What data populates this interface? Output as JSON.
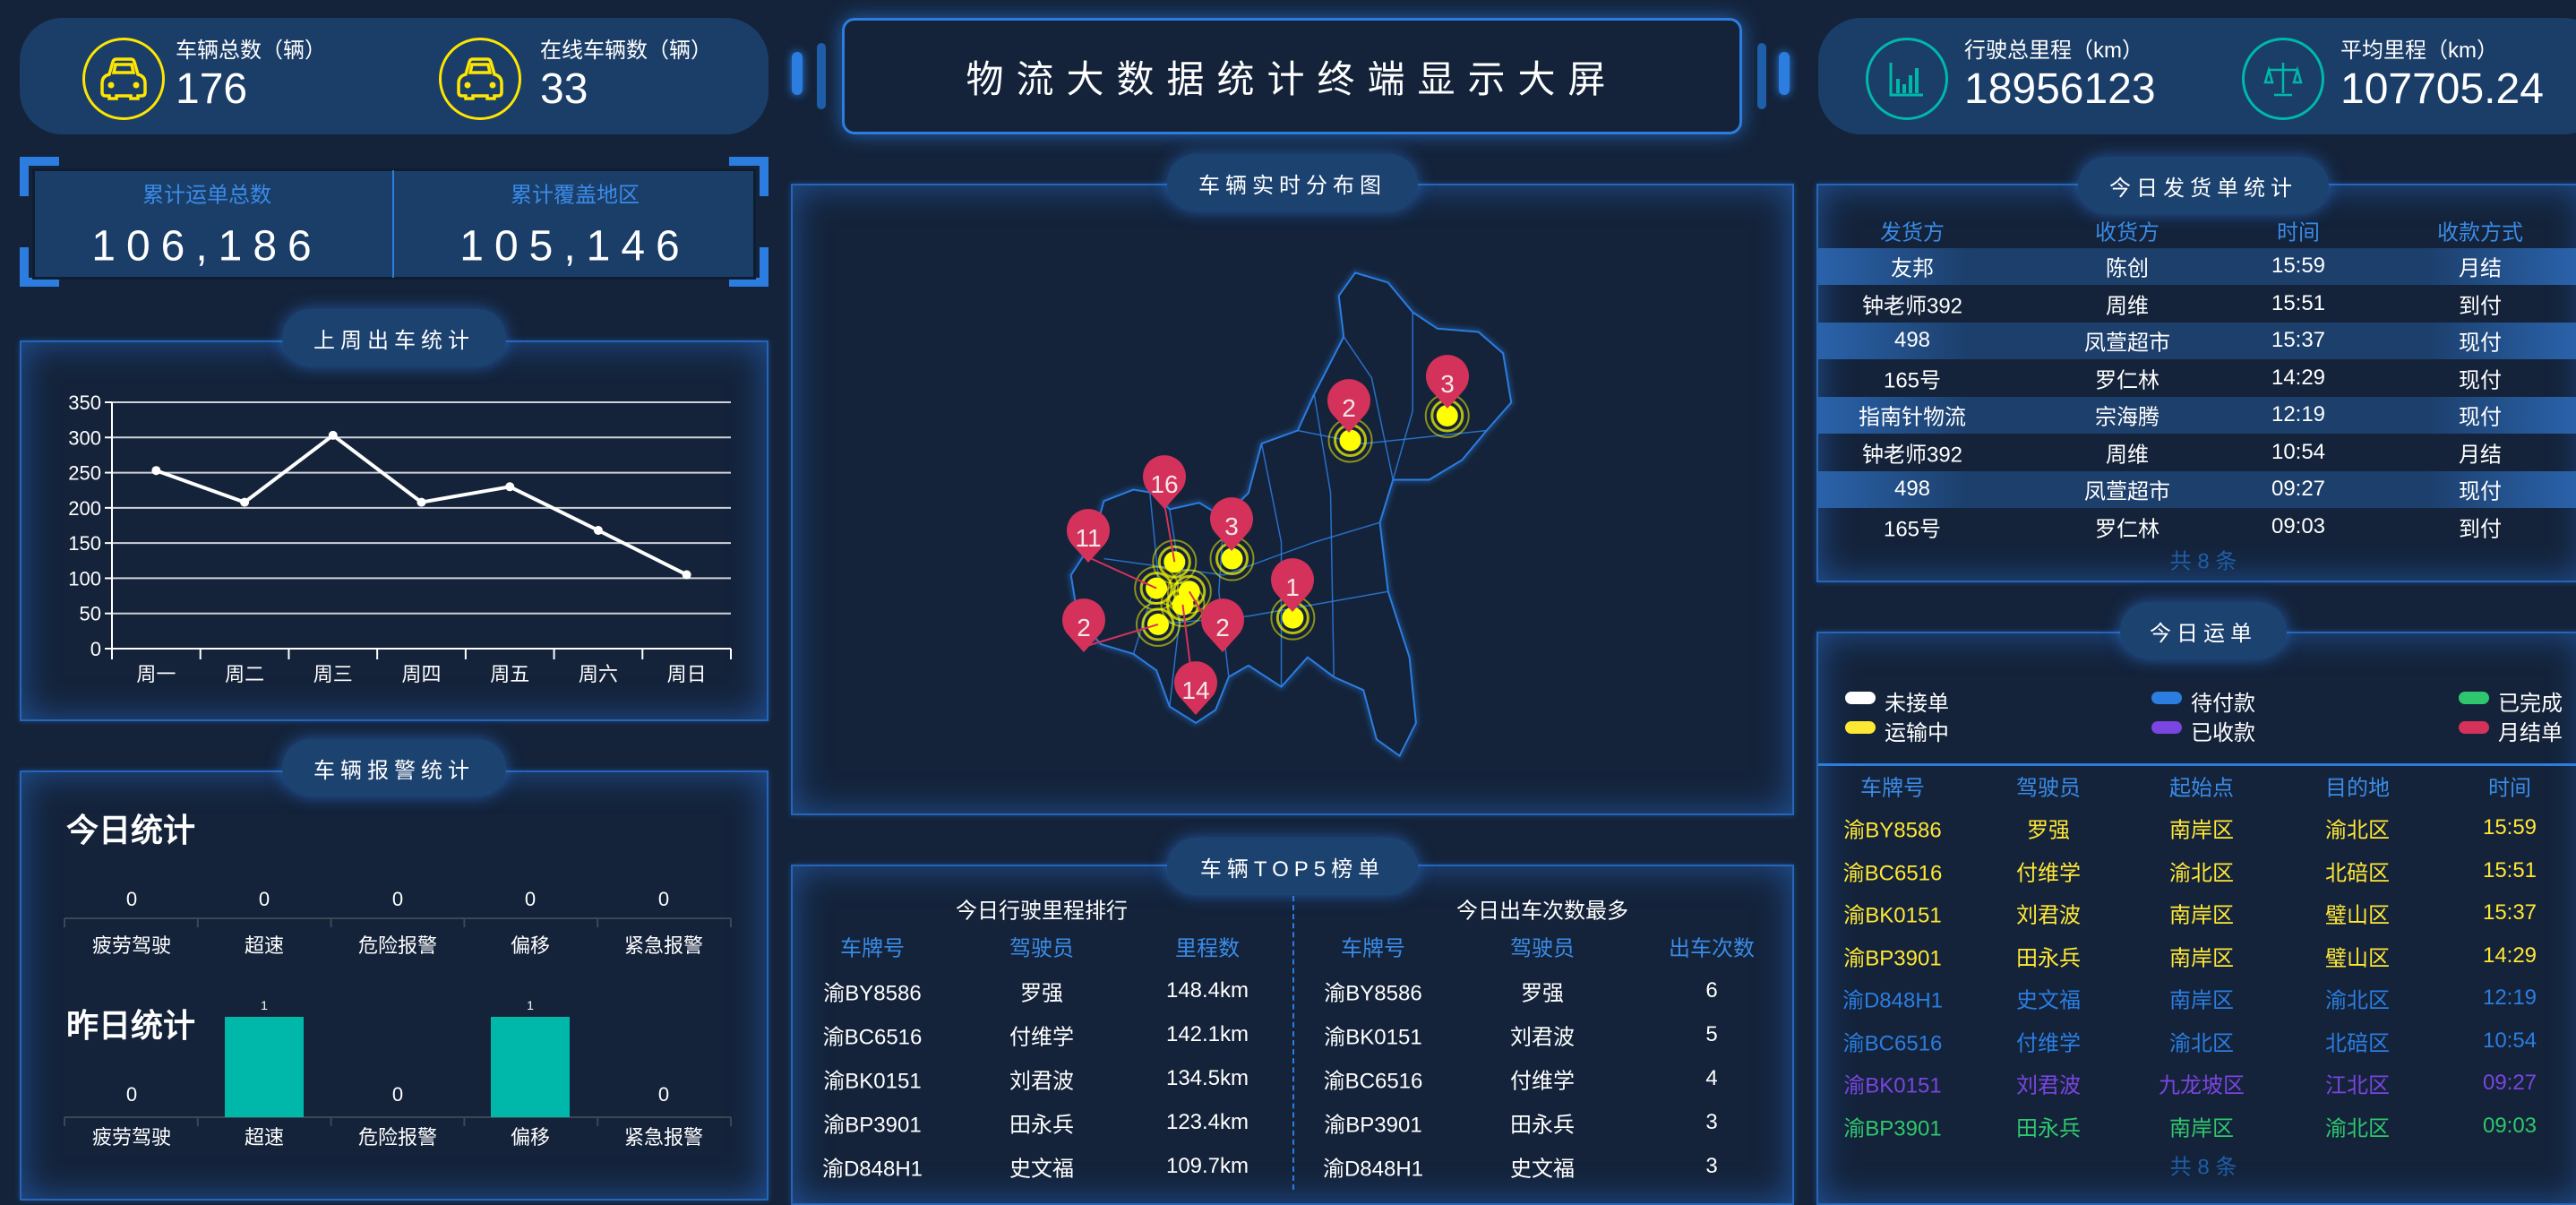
{
  "header": {
    "title": "物流大数据统计终端显示大屏",
    "kpis_left": [
      {
        "label": "车辆总数（辆）",
        "value": "176",
        "icon": "car-icon"
      },
      {
        "label": "在线车辆数（辆）",
        "value": "33",
        "icon": "car-icon"
      }
    ],
    "kpis_right": [
      {
        "label": "行驶总里程（km）",
        "value": "18956123",
        "icon": "bar-chart-icon"
      },
      {
        "label": "平均里程（km）",
        "value": "107705.24",
        "icon": "scale-icon"
      }
    ]
  },
  "totals": [
    {
      "label": "累计运单总数",
      "value": "106,186"
    },
    {
      "label": "累计覆盖地区",
      "value": "105,146"
    }
  ],
  "panels": {
    "weekly": "上周出车统计",
    "alarm": "车辆报警统计",
    "map": "车辆实时分布图",
    "top5": "车辆TOP5榜单",
    "shipping": "今日发货单统计",
    "orders": "今日运单"
  },
  "alarm": {
    "today_title": "今日统计",
    "yesterday_title": "昨日统计"
  },
  "chart_data": [
    {
      "type": "line",
      "categories": [
        "周一",
        "周二",
        "周三",
        "周四",
        "周五",
        "周六",
        "周日"
      ],
      "values": [
        253,
        208,
        303,
        208,
        230,
        168,
        105
      ],
      "ylim": [
        0,
        350
      ],
      "yticks": [
        0,
        50,
        100,
        150,
        200,
        250,
        300,
        350
      ],
      "grid": true,
      "color": "#ffffff"
    },
    {
      "type": "bar",
      "name": "今日统计",
      "categories": [
        "疲劳驾驶",
        "超速",
        "危险报警",
        "偏移",
        "紧急报警"
      ],
      "values": [
        0,
        0,
        0,
        0,
        0
      ],
      "labels": [
        "0",
        "0",
        "0",
        "0",
        "0"
      ],
      "color": "#00b8a9"
    },
    {
      "type": "bar",
      "name": "昨日统计",
      "categories": [
        "疲劳驾驶",
        "超速",
        "危险报警",
        "偏移",
        "紧急报警"
      ],
      "values": [
        0,
        1,
        0,
        1,
        0
      ],
      "labels": [
        "0",
        "1",
        "0",
        "1",
        "0"
      ],
      "color": "#00b8a9"
    }
  ],
  "map": {
    "markers": [
      {
        "label": "2"
      },
      {
        "label": "3"
      },
      {
        "label": "3"
      },
      {
        "label": "1"
      },
      {
        "label": "16"
      },
      {
        "label": "11"
      },
      {
        "label": "2"
      },
      {
        "label": "14"
      },
      {
        "label": "2"
      }
    ],
    "marker_color": "#d4325a",
    "dot_color": "#ffff00",
    "outline_color": "#2b7de0"
  },
  "top5": {
    "mileage": {
      "title": "今日行驶里程排行",
      "headers": [
        "车牌号",
        "驾驶员",
        "里程数"
      ],
      "rows": [
        [
          "渝BY8586",
          "罗强",
          "148.4km"
        ],
        [
          "渝BC6516",
          "付维学",
          "142.1km"
        ],
        [
          "渝BK0151",
          "刘君波",
          "134.5km"
        ],
        [
          "渝BP3901",
          "田永兵",
          "123.4km"
        ],
        [
          "渝D848H1",
          "史文福",
          "109.7km"
        ]
      ]
    },
    "trips": {
      "title": "今日出车次数最多",
      "headers": [
        "车牌号",
        "驾驶员",
        "出车次数"
      ],
      "rows": [
        [
          "渝BY8586",
          "罗强",
          "6"
        ],
        [
          "渝BK0151",
          "刘君波",
          "5"
        ],
        [
          "渝BC6516",
          "付维学",
          "4"
        ],
        [
          "渝BP3901",
          "田永兵",
          "3"
        ],
        [
          "渝D848H1",
          "史文福",
          "3"
        ]
      ]
    }
  },
  "shipping": {
    "headers": [
      "发货方",
      "收货方",
      "时间",
      "收款方式"
    ],
    "rows": [
      [
        "友邦",
        "陈创",
        "15:59",
        "月结"
      ],
      [
        "钟老师392",
        "周维",
        "15:51",
        "到付"
      ],
      [
        "498",
        "凤萱超市",
        "15:37",
        "现付"
      ],
      [
        "165号",
        "罗仁林",
        "14:29",
        "现付"
      ],
      [
        "指南针物流",
        "宗海腾",
        "12:19",
        "现付"
      ],
      [
        "钟老师392",
        "周维",
        "10:54",
        "月结"
      ],
      [
        "498",
        "凤萱超市",
        "09:27",
        "现付"
      ],
      [
        "165号",
        "罗仁林",
        "09:03",
        "到付"
      ]
    ],
    "footer": "共 8 条"
  },
  "orders": {
    "legend": [
      {
        "label": "未接单",
        "color": "#ffffff"
      },
      {
        "label": "待付款",
        "color": "#2b7de0"
      },
      {
        "label": "已完成",
        "color": "#2fc76e"
      },
      {
        "label": "运输中",
        "color": "#ffe735"
      },
      {
        "label": "已收款",
        "color": "#7a45e0"
      },
      {
        "label": "月结单",
        "color": "#d4325a"
      }
    ],
    "headers": [
      "车牌号",
      "驾驶员",
      "起始点",
      "目的地",
      "时间"
    ],
    "rows": [
      {
        "status": "运输中",
        "color": "#ffe735",
        "cells": [
          "渝BY8586",
          "罗强",
          "南岸区",
          "渝北区",
          "15:59"
        ]
      },
      {
        "status": "运输中",
        "color": "#ffe735",
        "cells": [
          "渝BC6516",
          "付维学",
          "渝北区",
          "北碚区",
          "15:51"
        ]
      },
      {
        "status": "运输中",
        "color": "#ffe735",
        "cells": [
          "渝BK0151",
          "刘君波",
          "南岸区",
          "璧山区",
          "15:37"
        ]
      },
      {
        "status": "运输中",
        "color": "#ffe735",
        "cells": [
          "渝BP3901",
          "田永兵",
          "南岸区",
          "璧山区",
          "14:29"
        ]
      },
      {
        "status": "待付款",
        "color": "#2b7de0",
        "cells": [
          "渝D848H1",
          "史文福",
          "南岸区",
          "渝北区",
          "12:19"
        ]
      },
      {
        "status": "待付款",
        "color": "#2b7de0",
        "cells": [
          "渝BC6516",
          "付维学",
          "渝北区",
          "北碚区",
          "10:54"
        ]
      },
      {
        "status": "已收款",
        "color": "#7a45e0",
        "cells": [
          "渝BK0151",
          "刘君波",
          "九龙坡区",
          "江北区",
          "09:27"
        ]
      },
      {
        "status": "已完成",
        "color": "#2fc76e",
        "cells": [
          "渝BP3901",
          "田永兵",
          "南岸区",
          "渝北区",
          "09:03"
        ]
      }
    ],
    "footer": "共 8 条"
  },
  "colors": {
    "background": "#14233a",
    "card": "#1b3e69",
    "accent": "#2b7de0",
    "header_text": "#3a8be6"
  }
}
